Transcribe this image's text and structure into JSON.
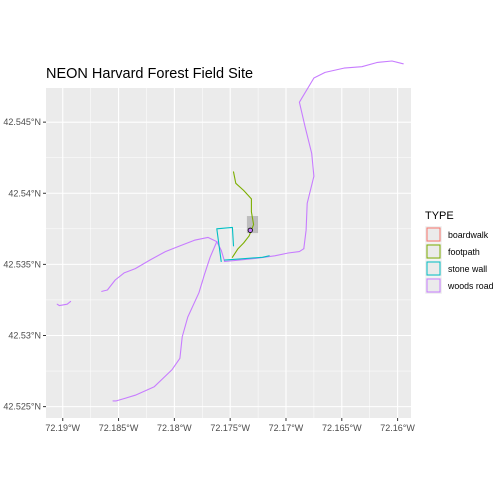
{
  "plot": {
    "title": "NEON Harvard Forest Field Site"
  },
  "axes": {
    "x_ticks": [
      {
        "value": -72.19,
        "label": "72.19°W"
      },
      {
        "value": -72.185,
        "label": "72.185°W"
      },
      {
        "value": -72.18,
        "label": "72.18°W"
      },
      {
        "value": -72.175,
        "label": "72.175°W"
      },
      {
        "value": -72.17,
        "label": "72.17°W"
      },
      {
        "value": -72.165,
        "label": "72.165°W"
      },
      {
        "value": -72.16,
        "label": "72.16°W"
      }
    ],
    "y_ticks": [
      {
        "value": 42.525,
        "label": "42.525°N"
      },
      {
        "value": 42.53,
        "label": "42.53°N"
      },
      {
        "value": 42.535,
        "label": "42.535°N"
      },
      {
        "value": 42.54,
        "label": "42.54°N"
      },
      {
        "value": 42.545,
        "label": "42.545°N"
      }
    ],
    "xlim": [
      -72.1915,
      -72.1588
    ],
    "ylim": [
      42.5242,
      42.5474
    ]
  },
  "colors": {
    "panel_bg": "#ebebeb",
    "grid": "#ffffff",
    "boardwalk": "#F8766D",
    "footpath": "#7CAE00",
    "stone_wall": "#00BFC4",
    "woods_road": "#C77CFF",
    "aoi_fill": "#bdbdbd",
    "tower": "#000000"
  },
  "legend": {
    "title": "TYPE",
    "items": [
      {
        "key": "boardwalk",
        "label": "boardwalk",
        "color": "#F8766D"
      },
      {
        "key": "footpath",
        "label": "footpath",
        "color": "#7CAE00"
      },
      {
        "key": "stone_wall",
        "label": "stone wall",
        "color": "#00BFC4"
      },
      {
        "key": "woods_road",
        "label": "woods road",
        "color": "#C77CFF"
      }
    ]
  },
  "map_data": {
    "aoi_box": {
      "lon": [
        -72.1735,
        -72.1725
      ],
      "lat": [
        42.5372,
        42.5384
      ]
    },
    "tower_point": {
      "lon": [
        -72.1732
      ],
      "lat": [
        42.5374
      ]
    },
    "lines": [
      {
        "type": "woods_road",
        "color": "#C77CFF",
        "lon": [
          -72.1905,
          -72.1903,
          -72.1896,
          -72.1893
        ],
        "lat": [
          42.5322,
          42.5321,
          42.5322,
          42.5324
        ]
      },
      {
        "type": "woods_road",
        "color": "#C77CFF",
        "lon": [
          -72.1865,
          -72.186,
          -72.1853,
          -72.1845,
          -72.1835,
          -72.1822,
          -72.1808,
          -72.1795,
          -72.1782,
          -72.177,
          -72.1762
        ],
        "lat": [
          42.5331,
          42.5332,
          42.5339,
          42.5344,
          42.5347,
          42.5353,
          42.5359,
          42.5363,
          42.5367,
          42.5369,
          42.5366
        ]
      },
      {
        "type": "woods_road",
        "color": "#C77CFF",
        "lon": [
          -72.1762,
          -72.1768,
          -72.1773,
          -72.1778,
          -72.1788,
          -72.1793,
          -72.1795,
          -72.1802,
          -72.1818,
          -72.1835,
          -72.1852,
          -72.1855
        ],
        "lat": [
          42.5366,
          42.5355,
          42.5343,
          42.533,
          42.5313,
          42.5299,
          42.5284,
          42.5276,
          42.5264,
          42.5258,
          42.5254,
          42.5254
        ]
      },
      {
        "type": "woods_road",
        "color": "#C77CFF",
        "lon": [
          -72.1762,
          -72.1758,
          -72.1755
        ],
        "lat": [
          42.5366,
          42.536,
          42.5352
        ]
      },
      {
        "type": "woods_road",
        "color": "#C77CFF",
        "lon": [
          -72.1755,
          -72.1742,
          -72.173,
          -72.172,
          -72.171,
          -72.1698,
          -72.1688,
          -72.1684
        ],
        "lat": [
          42.5352,
          42.5353,
          42.5354,
          42.5355,
          42.5356,
          42.5358,
          42.5359,
          42.5361
        ]
      },
      {
        "type": "woods_road",
        "color": "#C77CFF",
        "lon": [
          -72.1684,
          -72.1682,
          -72.1681,
          -72.1675,
          -72.1677,
          -72.1683,
          -72.1688,
          -72.1675,
          -72.1665,
          -72.1648,
          -72.1632,
          -72.1618,
          -72.1605,
          -72.1595
        ],
        "lat": [
          42.5361,
          42.5374,
          42.5393,
          42.5412,
          42.5428,
          42.5447,
          42.5464,
          42.5481,
          42.5485,
          42.5488,
          42.5489,
          42.5492,
          42.5493,
          42.5491
        ]
      },
      {
        "type": "footpath",
        "color": "#7CAE00",
        "lon": [
          -72.1747,
          -72.1745,
          -72.1738,
          -72.1731,
          -72.1731,
          -72.1729,
          -72.1733,
          -72.1738,
          -72.1743,
          -72.1748
        ],
        "lat": [
          42.5415,
          42.5407,
          42.5402,
          42.5396,
          42.5387,
          42.5378,
          42.537,
          42.5365,
          42.5361,
          42.5355
        ]
      },
      {
        "type": "stone_wall",
        "color": "#00BFC4",
        "lon": [
          -72.1758,
          -72.1762,
          -72.1748,
          -72.1747
        ],
        "lat": [
          42.5352,
          42.5375,
          42.5376,
          42.5363
        ]
      },
      {
        "type": "stone_wall",
        "color": "#00BFC4",
        "lon": [
          -72.1755,
          -72.1738,
          -72.1721,
          -72.1715
        ],
        "lat": [
          42.5353,
          42.5354,
          42.5355,
          42.5356
        ]
      }
    ]
  }
}
